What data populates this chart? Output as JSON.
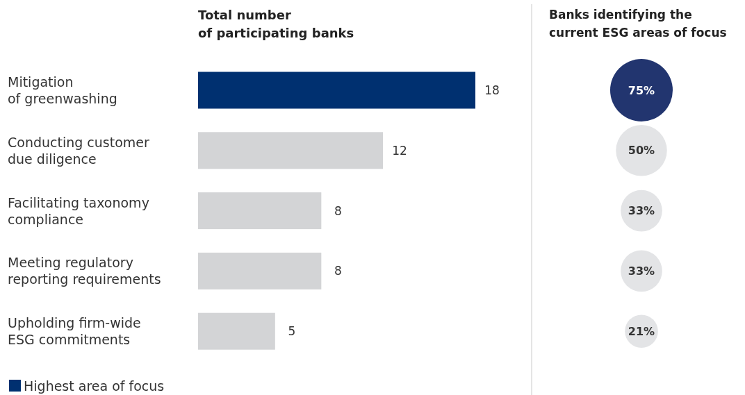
{
  "chart_data": [
    {
      "type": "bar",
      "orientation": "horizontal",
      "title": "Total number\nof participating banks",
      "categories": [
        "Mitigation\nof greenwashing",
        "Conducting customer\ndue diligence",
        "Facilitating taxonomy\ncompliance",
        "Meeting regulatory\nreporting requirements",
        "Upholding firm-wide\nESG commitments"
      ],
      "series": [
        {
          "name": "Highest area of focus",
          "color": "#003070",
          "values": [
            18,
            null,
            null,
            null,
            null
          ]
        },
        {
          "color": "#d3d4d6",
          "values": [
            null,
            12,
            8,
            8,
            5
          ]
        }
      ],
      "data_labels": true,
      "legend": "bottom left"
    },
    {
      "type": "other",
      "title": "Banks identifying the\ncurrent ESG areas of focus",
      "categories": [
        null,
        null,
        null,
        null,
        null
      ],
      "values": [
        75,
        50,
        33,
        33,
        21
      ],
      "value_labels": [
        "75%",
        "50%",
        "33%",
        "33%",
        "21%"
      ],
      "colors": [
        "#22356f",
        "#e3e4e6",
        "#e3e4e6",
        "#e3e4e6",
        "#e3e4e6"
      ]
    }
  ]
}
